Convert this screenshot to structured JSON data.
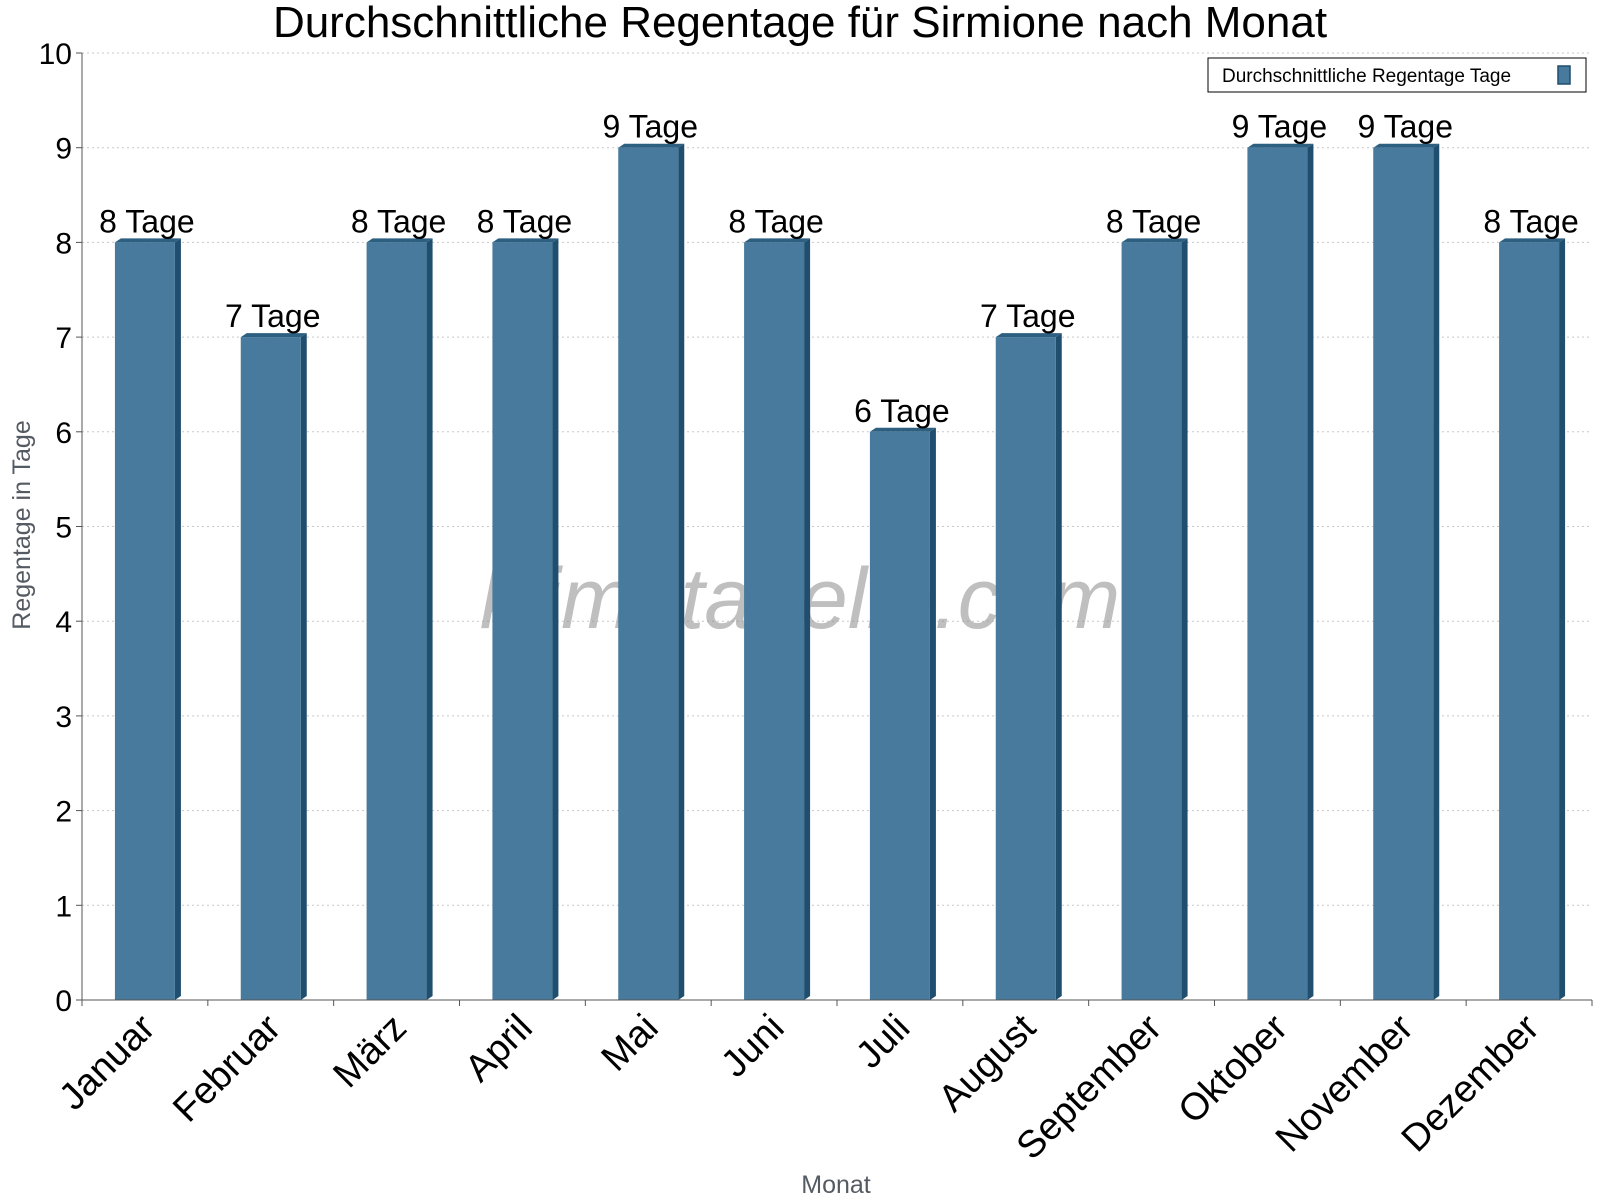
{
  "chart_data": {
    "type": "bar",
    "title": "Durchschnittliche Regentage für Sirmione nach Monat",
    "xlabel": "Monat",
    "ylabel": "Regentage in Tage",
    "categories": [
      "Januar",
      "Februar",
      "März",
      "April",
      "Mai",
      "Juni",
      "Juli",
      "August",
      "September",
      "Oktober",
      "November",
      "Dezember"
    ],
    "series": [
      {
        "name": "Durchschnittliche Regentage Tage",
        "values": [
          8,
          7,
          8,
          8,
          9,
          8,
          6,
          7,
          8,
          9,
          9,
          8
        ],
        "data_labels": [
          "8 Tage",
          "7 Tage",
          "8 Tage",
          "8 Tage",
          "9 Tage",
          "8 Tage",
          "6 Tage",
          "7 Tage",
          "8 Tage",
          "9 Tage",
          "9 Tage",
          "8 Tage"
        ]
      }
    ],
    "ylim": [
      0,
      10
    ],
    "yticks": [
      "0",
      "1",
      "2",
      "3",
      "4",
      "5",
      "6",
      "7",
      "8",
      "9",
      "10"
    ],
    "grid": true,
    "legend_position": "top-right",
    "watermark": "klimatabelle.com",
    "colors": {
      "bar_face": "#477a9c",
      "bar_side": "#1f4e6e",
      "bar_top": "#2d5f80",
      "grid": "#c8c8c8",
      "axis": "#555555"
    }
  }
}
